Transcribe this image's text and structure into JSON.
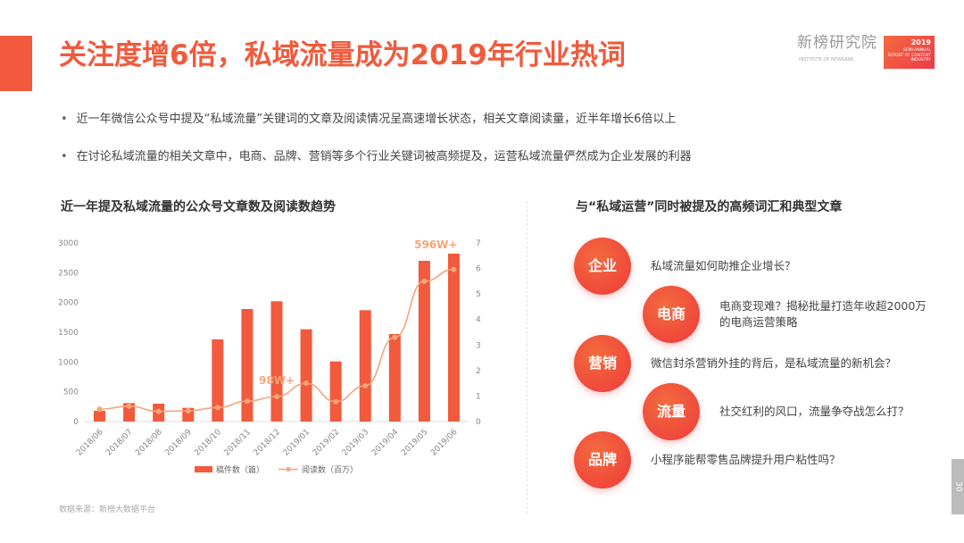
{
  "title": "关注度增6倍，私域流量成为2019年行业热词",
  "logo": {
    "cn": "新榜研究院",
    "en": "INSTITUTE OF NEWRANK",
    "badge_year": "2019",
    "badge_text": "SEMI-ANNUAL REPORT OF CONTENT INDUSTRY"
  },
  "bullets": [
    "近一年微信公众号中提及“私域流量”关键词的文章及阅读情况呈高速增长状态，相关文章阅读量，近半年增长6倍以上",
    "在讨论私域流量的相关文章中，电商、品牌、营销等多个行业关键词被高频提及，运营私域流量俨然成为企业发展的利器"
  ],
  "left_title": "近一年提及私域流量的公众号文章数及阅读数趋势",
  "right_title": "与“私域运营”同时被提及的高频词汇和典型文章",
  "source": "数据来源：新榜大数据平台",
  "page_number": "30",
  "keywords": [
    {
      "word": "企业",
      "text": "私域流量如何助推企业增长？"
    },
    {
      "word": "电商",
      "text": "电商变现难？揭秘批量打造年收超2000万的电商运营策略"
    },
    {
      "word": "营销",
      "text": "微信封杀营销外挂的背后，是私域流量的新机会？"
    },
    {
      "word": "流量",
      "text": "社交红利的风口，流量争夺战怎么打？"
    },
    {
      "word": "品牌",
      "text": "小程序能帮零售品牌提升用户粘性吗？"
    }
  ],
  "colors": {
    "accent": "#f15a3c",
    "line": "#f5a57a"
  },
  "chart_data": {
    "type": "bar+line",
    "categories": [
      "2018/06",
      "2018/07",
      "2018/08",
      "2018/09",
      "2018/10",
      "2018/11",
      "2018/12",
      "2019/01",
      "2019/02",
      "2019/03",
      "2019/04",
      "2019/05",
      "2019/06"
    ],
    "series": [
      {
        "name": "稿件数（篇）",
        "type": "bar",
        "axis": "left",
        "values": [
          180,
          310,
          300,
          230,
          1380,
          1890,
          2020,
          1550,
          1010,
          1870,
          1470,
          2700,
          2820
        ]
      },
      {
        "name": "阅读数（百万）",
        "type": "line",
        "axis": "right",
        "values": [
          0.48,
          0.6,
          0.4,
          0.42,
          0.55,
          0.8,
          0.98,
          1.5,
          0.78,
          1.4,
          3.3,
          5.5,
          5.96
        ]
      }
    ],
    "ylim_left": [
      0,
      3000
    ],
    "yticks_left": [
      0,
      500,
      1000,
      1500,
      2000,
      2500,
      3000
    ],
    "ylim_right": [
      0,
      7
    ],
    "yticks_right": [
      0,
      1,
      2,
      3,
      4,
      5,
      6,
      7
    ],
    "annotations": [
      {
        "category": "2018/12",
        "text": "98W+"
      },
      {
        "category": "2019/06",
        "text": "596W+"
      }
    ],
    "legend": "bottom",
    "grid": false
  }
}
